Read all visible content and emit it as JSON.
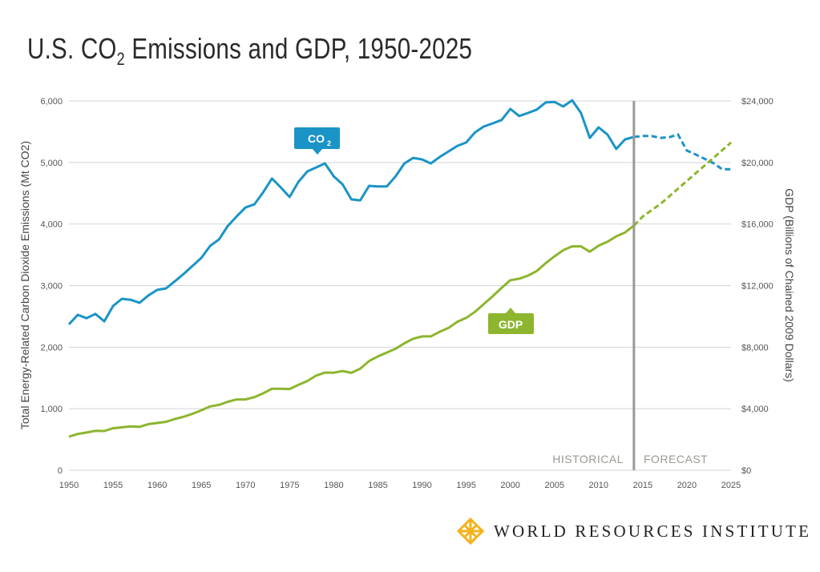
{
  "title": {
    "prefix": "U.S. CO",
    "sub": "2",
    "suffix": " Emissions and GDP, 1950-2025"
  },
  "logo": {
    "text": "WORLD RESOURCES INSTITUTE",
    "color": "#f5b21b"
  },
  "chart_data": {
    "type": "line",
    "title": "U.S. CO2 Emissions and GDP, 1950-2025",
    "xlim": [
      1950,
      2025
    ],
    "x_ticks": [
      "1950",
      "1955",
      "1960",
      "1965",
      "1970",
      "1975",
      "1980",
      "1985",
      "1990",
      "1995",
      "2000",
      "2005",
      "2010",
      "2015",
      "2020",
      "2025"
    ],
    "y_left": {
      "label": "Total Energy-Related Carbon Dioxide Emissions (Mt CO2)",
      "lim": [
        0,
        6000
      ],
      "ticks": [
        "0",
        "1,000",
        "2,000",
        "3,000",
        "4,000",
        "5,000",
        "6,000"
      ]
    },
    "y_right": {
      "label": "GDP (Billions of Chained 2009 Dollars)",
      "lim": [
        0,
        24000
      ],
      "ticks": [
        "$0",
        "$4,000",
        "$8,000",
        "$12,000",
        "$16,000",
        "$20,000",
        "$24,000"
      ]
    },
    "grid": "horizontal",
    "divider": {
      "year": 2014,
      "left_label": "HISTORICAL",
      "right_label": "FORECAST"
    },
    "series": [
      {
        "name": "CO2",
        "callout_main": "CO",
        "callout_sub": "2",
        "axis": "left",
        "color": "#1a94c6",
        "historical": {
          "x_start": 1950,
          "values": [
            2370,
            2525,
            2470,
            2540,
            2420,
            2670,
            2785,
            2770,
            2720,
            2840,
            2930,
            2955,
            3070,
            3190,
            3320,
            3450,
            3645,
            3750,
            3970,
            4125,
            4270,
            4320,
            4515,
            4740,
            4595,
            4440,
            4685,
            4855,
            4920,
            4985,
            4775,
            4645,
            4400,
            4385,
            4620,
            4610,
            4610,
            4775,
            4985,
            5075,
            5050,
            4985,
            5090,
            5180,
            5270,
            5325,
            5490,
            5585,
            5635,
            5690,
            5870,
            5755,
            5805,
            5860,
            5975,
            5985,
            5910,
            6010,
            5805,
            5400,
            5570,
            5455,
            5220,
            5375,
            5415
          ]
        },
        "forecast": {
          "x_start": 2014,
          "values": [
            5415,
            5430,
            5430,
            5400,
            5410,
            5455,
            5195,
            5130,
            5060,
            4990,
            4890,
            4890
          ]
        }
      },
      {
        "name": "GDP",
        "callout_main": "GDP",
        "callout_sub": "",
        "axis": "right",
        "color": "#8db52e",
        "historical": {
          "x_start": 1950,
          "values": [
            2180,
            2360,
            2450,
            2560,
            2550,
            2730,
            2790,
            2850,
            2820,
            3000,
            3070,
            3150,
            3330,
            3480,
            3670,
            3900,
            4150,
            4250,
            4450,
            4600,
            4600,
            4750,
            5000,
            5300,
            5300,
            5280,
            5550,
            5800,
            6150,
            6350,
            6340,
            6450,
            6330,
            6600,
            7100,
            7400,
            7650,
            7900,
            8250,
            8550,
            8700,
            8700,
            9000,
            9250,
            9650,
            9900,
            10300,
            10800,
            11300,
            11850,
            12350,
            12450,
            12650,
            12950,
            13450,
            13900,
            14300,
            14550,
            14550,
            14200,
            14600,
            14850,
            15200,
            15450,
            15900
          ]
        },
        "forecast": {
          "x_start": 2014,
          "values": [
            15900,
            16500,
            16900,
            17300,
            17800,
            18300,
            18800,
            19300,
            19800,
            20300,
            20800,
            21300
          ]
        }
      }
    ]
  }
}
